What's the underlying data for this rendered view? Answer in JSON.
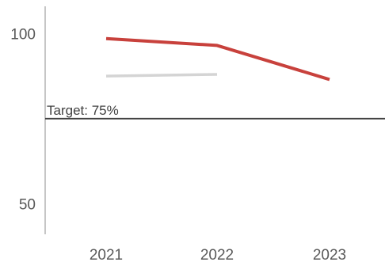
{
  "chart_data": {
    "type": "line",
    "categories": [
      "2021",
      "2022",
      "2023"
    ],
    "series": [
      {
        "values": [
          98.5,
          96.5,
          86.5
        ],
        "color": "#c8413c"
      },
      {
        "values": [
          87.5,
          88.0,
          null
        ],
        "color": "#d4d4d4"
      }
    ],
    "target": {
      "value": 75,
      "label": "Target: 75%",
      "color": "#404040"
    },
    "ylim": [
      41,
      108
    ],
    "y_ticks": [
      {
        "value": 100,
        "label": "100"
      },
      {
        "value": 50,
        "label": "50"
      }
    ],
    "axis_color": "#8c8c8c",
    "grid": false,
    "title": "",
    "xlabel": "",
    "ylabel": ""
  }
}
